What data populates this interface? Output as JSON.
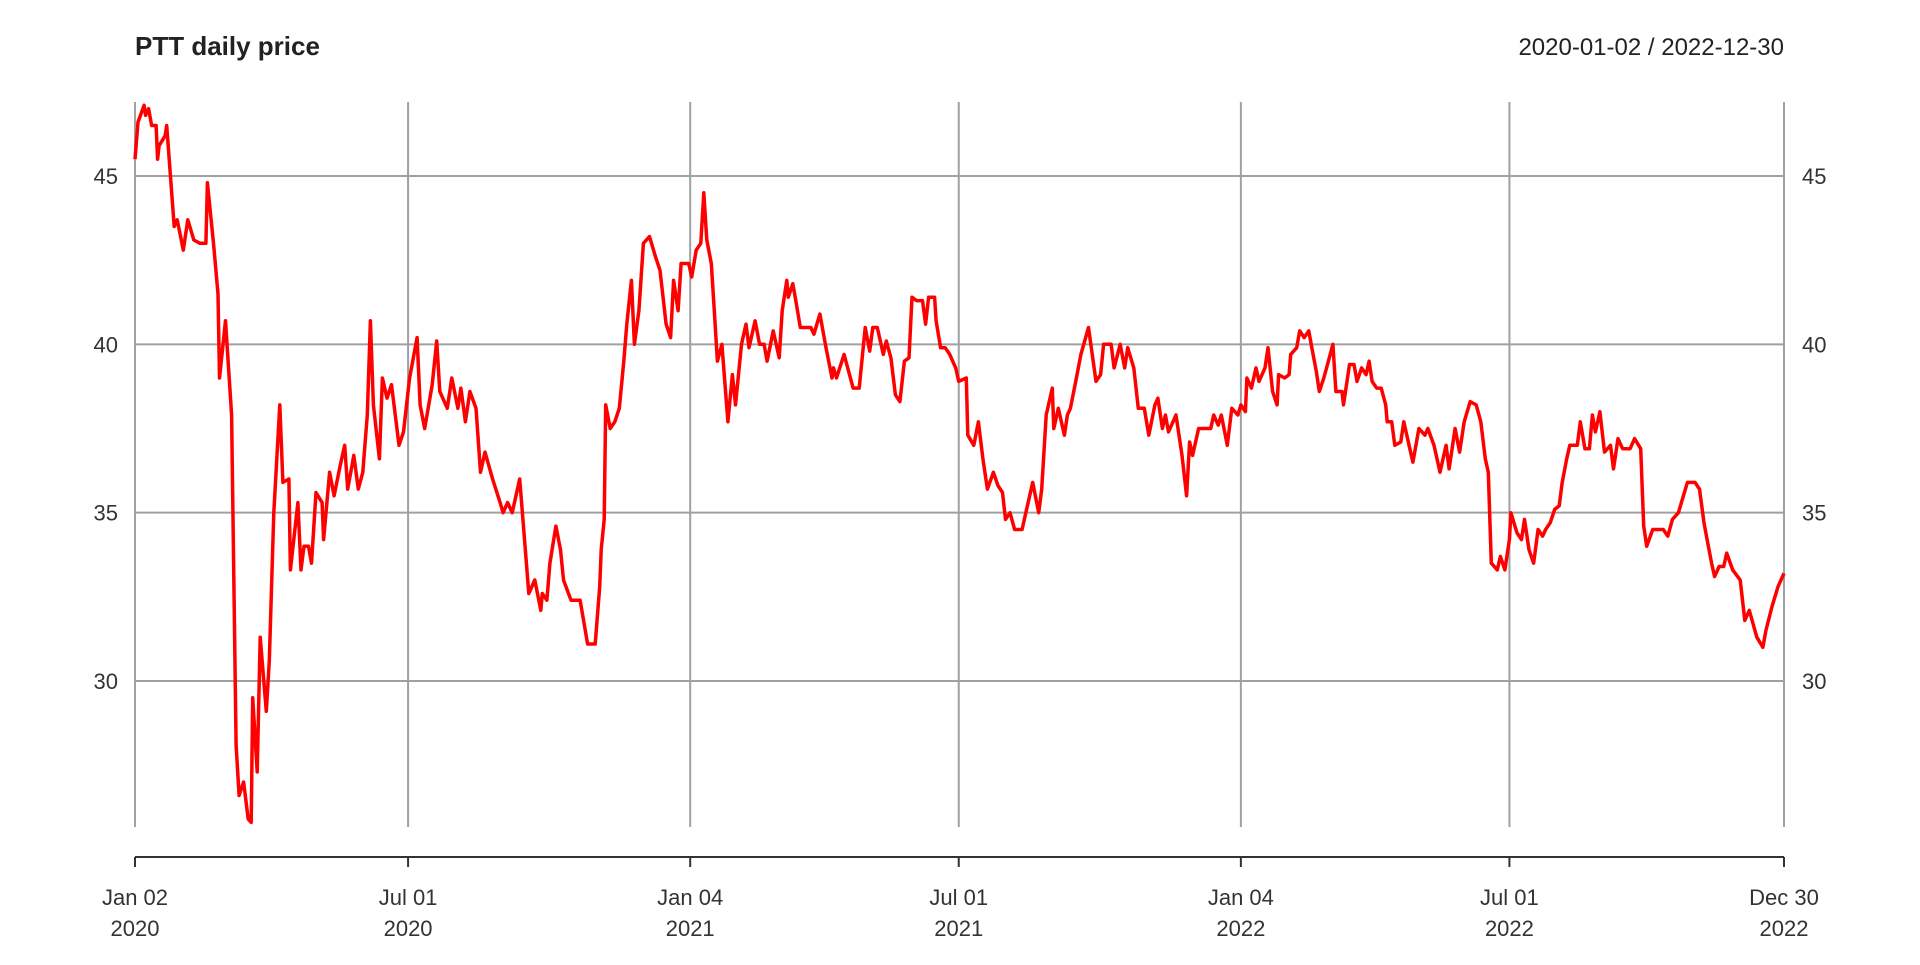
{
  "chart_data": {
    "type": "line",
    "title": "PTT daily price",
    "date_range": "2020-01-02 / 2022-12-30",
    "xlabel": "",
    "ylabel": "",
    "xlim": [
      "2020-01-02",
      "2022-12-30"
    ],
    "ylim": [
      25.8,
      47.2
    ],
    "grid": true,
    "y_ticks": [
      30,
      35,
      40,
      45
    ],
    "y_tick_labels": [
      "30",
      "35",
      "40",
      "45"
    ],
    "x_ticks": [
      {
        "date": "2020-01-02",
        "label1": "Jan 02",
        "label2": "2020"
      },
      {
        "date": "2020-07-01",
        "label1": "Jul 01",
        "label2": "2020"
      },
      {
        "date": "2021-01-04",
        "label1": "Jan 04",
        "label2": "2021"
      },
      {
        "date": "2021-07-01",
        "label1": "Jul 01",
        "label2": "2021"
      },
      {
        "date": "2022-01-04",
        "label1": "Jan 04",
        "label2": "2022"
      },
      {
        "date": "2022-07-01",
        "label1": "Jul 01",
        "label2": "2022"
      },
      {
        "date": "2022-12-30",
        "label1": "Dec 30",
        "label2": "2022"
      }
    ],
    "series_color": "#ff0000",
    "points": [
      [
        "2020-01-02",
        45.5
      ],
      [
        "2020-01-04",
        46.6
      ],
      [
        "2020-01-08",
        47.1
      ],
      [
        "2020-01-09",
        46.8
      ],
      [
        "2020-01-11",
        47.0
      ],
      [
        "2020-01-13",
        46.5
      ],
      [
        "2020-01-16",
        46.5
      ],
      [
        "2020-01-17",
        45.5
      ],
      [
        "2020-01-18",
        45.9
      ],
      [
        "2020-01-22",
        46.2
      ],
      [
        "2020-01-23",
        46.5
      ],
      [
        "2020-01-28",
        43.5
      ],
      [
        "2020-01-30",
        43.7
      ],
      [
        "2020-02-03",
        42.8
      ],
      [
        "2020-02-06",
        43.7
      ],
      [
        "2020-02-10",
        43.1
      ],
      [
        "2020-02-14",
        43.0
      ],
      [
        "2020-02-18",
        43.0
      ],
      [
        "2020-02-19",
        44.8
      ],
      [
        "2020-02-23",
        43.0
      ],
      [
        "2020-02-26",
        41.5
      ],
      [
        "2020-02-27",
        39.0
      ],
      [
        "2020-03-02",
        40.7
      ],
      [
        "2020-03-06",
        37.9
      ],
      [
        "2020-03-09",
        28.1
      ],
      [
        "2020-03-11",
        26.6
      ],
      [
        "2020-03-14",
        27.0
      ],
      [
        "2020-03-17",
        25.9
      ],
      [
        "2020-03-19",
        25.8
      ],
      [
        "2020-03-20",
        29.5
      ],
      [
        "2020-03-23",
        27.3
      ],
      [
        "2020-03-25",
        31.3
      ],
      [
        "2020-03-29",
        29.1
      ],
      [
        "2020-03-31",
        30.6
      ],
      [
        "2020-04-03",
        35.0
      ],
      [
        "2020-04-07",
        38.2
      ],
      [
        "2020-04-09",
        35.9
      ],
      [
        "2020-04-13",
        36.0
      ],
      [
        "2020-04-14",
        33.3
      ],
      [
        "2020-04-19",
        35.3
      ],
      [
        "2020-04-21",
        33.3
      ],
      [
        "2020-04-23",
        34.0
      ],
      [
        "2020-04-26",
        34.0
      ],
      [
        "2020-04-28",
        33.5
      ],
      [
        "2020-05-01",
        35.6
      ],
      [
        "2020-05-05",
        35.3
      ],
      [
        "2020-05-06",
        34.2
      ],
      [
        "2020-05-10",
        36.2
      ],
      [
        "2020-05-13",
        35.5
      ],
      [
        "2020-05-17",
        36.4
      ],
      [
        "2020-05-20",
        37.0
      ],
      [
        "2020-05-22",
        35.7
      ],
      [
        "2020-05-26",
        36.7
      ],
      [
        "2020-05-29",
        35.7
      ],
      [
        "2020-06-01",
        36.2
      ],
      [
        "2020-06-04",
        37.9
      ],
      [
        "2020-06-06",
        40.7
      ],
      [
        "2020-06-08",
        38.2
      ],
      [
        "2020-06-12",
        36.6
      ],
      [
        "2020-06-14",
        39.0
      ],
      [
        "2020-06-17",
        38.4
      ],
      [
        "2020-06-20",
        38.8
      ],
      [
        "2020-06-25",
        37.0
      ],
      [
        "2020-06-28",
        37.4
      ],
      [
        "2020-07-02",
        39.0
      ],
      [
        "2020-07-07",
        40.2
      ],
      [
        "2020-07-09",
        38.2
      ],
      [
        "2020-07-12",
        37.5
      ],
      [
        "2020-07-17",
        38.8
      ],
      [
        "2020-07-20",
        40.1
      ],
      [
        "2020-07-22",
        38.6
      ],
      [
        "2020-07-27",
        38.1
      ],
      [
        "2020-07-30",
        39.0
      ],
      [
        "2020-08-03",
        38.1
      ],
      [
        "2020-08-05",
        38.7
      ],
      [
        "2020-08-08",
        37.7
      ],
      [
        "2020-08-11",
        38.6
      ],
      [
        "2020-08-15",
        38.1
      ],
      [
        "2020-08-18",
        36.2
      ],
      [
        "2020-08-21",
        36.8
      ],
      [
        "2020-08-26",
        36.0
      ],
      [
        "2020-08-31",
        35.3
      ],
      [
        "2020-09-02",
        35.0
      ],
      [
        "2020-09-05",
        35.3
      ],
      [
        "2020-09-08",
        35.0
      ],
      [
        "2020-09-13",
        36.0
      ],
      [
        "2020-09-19",
        32.6
      ],
      [
        "2020-09-23",
        33.0
      ],
      [
        "2020-09-27",
        32.1
      ],
      [
        "2020-09-28",
        32.6
      ],
      [
        "2020-10-01",
        32.4
      ],
      [
        "2020-10-03",
        33.5
      ],
      [
        "2020-10-07",
        34.6
      ],
      [
        "2020-10-10",
        33.9
      ],
      [
        "2020-10-12",
        33.0
      ],
      [
        "2020-10-17",
        32.4
      ],
      [
        "2020-10-23",
        32.4
      ],
      [
        "2020-10-28",
        31.1
      ],
      [
        "2020-11-02",
        31.1
      ],
      [
        "2020-11-05",
        32.8
      ],
      [
        "2020-11-06",
        33.9
      ],
      [
        "2020-11-08",
        34.8
      ],
      [
        "2020-11-09",
        38.2
      ],
      [
        "2020-11-12",
        37.5
      ],
      [
        "2020-11-15",
        37.7
      ],
      [
        "2020-11-18",
        38.1
      ],
      [
        "2020-11-21",
        39.5
      ],
      [
        "2020-11-23",
        40.6
      ],
      [
        "2020-11-26",
        41.9
      ],
      [
        "2020-11-28",
        40.0
      ],
      [
        "2020-12-01",
        41.0
      ],
      [
        "2020-12-04",
        43.0
      ],
      [
        "2020-12-08",
        43.2
      ],
      [
        "2020-12-12",
        42.6
      ],
      [
        "2020-12-15",
        42.2
      ],
      [
        "2020-12-19",
        40.6
      ],
      [
        "2020-12-22",
        40.2
      ],
      [
        "2020-12-24",
        41.9
      ],
      [
        "2020-12-27",
        41.0
      ],
      [
        "2020-12-29",
        42.4
      ],
      [
        "2021-01-03",
        42.4
      ],
      [
        "2021-01-05",
        42.0
      ],
      [
        "2021-01-08",
        42.8
      ],
      [
        "2021-01-11",
        43.0
      ],
      [
        "2021-01-13",
        44.5
      ],
      [
        "2021-01-15",
        43.1
      ],
      [
        "2021-01-18",
        42.4
      ],
      [
        "2021-01-20",
        41.0
      ],
      [
        "2021-01-22",
        39.5
      ],
      [
        "2021-01-25",
        40.0
      ],
      [
        "2021-01-29",
        37.7
      ],
      [
        "2021-02-01",
        39.1
      ],
      [
        "2021-02-03",
        38.2
      ],
      [
        "2021-02-07",
        40.0
      ],
      [
        "2021-02-10",
        40.6
      ],
      [
        "2021-02-12",
        39.9
      ],
      [
        "2021-02-16",
        40.7
      ],
      [
        "2021-02-19",
        40.0
      ],
      [
        "2021-02-22",
        40.0
      ],
      [
        "2021-02-24",
        39.5
      ],
      [
        "2021-02-28",
        40.4
      ],
      [
        "2021-03-04",
        39.6
      ],
      [
        "2021-03-06",
        41.0
      ],
      [
        "2021-03-09",
        41.9
      ],
      [
        "2021-03-10",
        41.4
      ],
      [
        "2021-03-13",
        41.8
      ],
      [
        "2021-03-15",
        41.3
      ],
      [
        "2021-03-18",
        40.5
      ],
      [
        "2021-03-25",
        40.5
      ],
      [
        "2021-03-27",
        40.3
      ],
      [
        "2021-03-31",
        40.9
      ],
      [
        "2021-04-04",
        39.9
      ],
      [
        "2021-04-08",
        39.0
      ],
      [
        "2021-04-09",
        39.3
      ],
      [
        "2021-04-11",
        39.0
      ],
      [
        "2021-04-16",
        39.7
      ],
      [
        "2021-04-22",
        38.7
      ],
      [
        "2021-04-26",
        38.7
      ],
      [
        "2021-04-30",
        40.5
      ],
      [
        "2021-05-03",
        39.8
      ],
      [
        "2021-05-05",
        40.5
      ],
      [
        "2021-05-08",
        40.5
      ],
      [
        "2021-05-12",
        39.7
      ],
      [
        "2021-05-14",
        40.1
      ],
      [
        "2021-05-17",
        39.6
      ],
      [
        "2021-05-20",
        38.5
      ],
      [
        "2021-05-23",
        38.3
      ],
      [
        "2021-05-26",
        39.5
      ],
      [
        "2021-05-29",
        39.6
      ],
      [
        "2021-05-31",
        41.4
      ],
      [
        "2021-06-03",
        41.3
      ],
      [
        "2021-06-07",
        41.3
      ],
      [
        "2021-06-09",
        40.6
      ],
      [
        "2021-06-11",
        41.4
      ],
      [
        "2021-06-15",
        41.4
      ],
      [
        "2021-06-16",
        40.7
      ],
      [
        "2021-06-19",
        39.9
      ],
      [
        "2021-06-22",
        39.9
      ],
      [
        "2021-06-25",
        39.7
      ],
      [
        "2021-06-29",
        39.3
      ],
      [
        "2021-07-01",
        38.9
      ],
      [
        "2021-07-06",
        39.0
      ],
      [
        "2021-07-07",
        37.3
      ],
      [
        "2021-07-11",
        37.0
      ],
      [
        "2021-07-14",
        37.7
      ],
      [
        "2021-07-17",
        36.6
      ],
      [
        "2021-07-20",
        35.7
      ],
      [
        "2021-07-24",
        36.2
      ],
      [
        "2021-07-27",
        35.8
      ],
      [
        "2021-07-30",
        35.6
      ],
      [
        "2021-08-01",
        34.8
      ],
      [
        "2021-08-04",
        35.0
      ],
      [
        "2021-08-07",
        34.5
      ],
      [
        "2021-08-12",
        34.5
      ],
      [
        "2021-08-15",
        35.1
      ],
      [
        "2021-08-19",
        35.9
      ],
      [
        "2021-08-23",
        35.0
      ],
      [
        "2021-08-25",
        35.7
      ],
      [
        "2021-08-28",
        37.9
      ],
      [
        "2021-09-01",
        38.7
      ],
      [
        "2021-09-02",
        37.5
      ],
      [
        "2021-09-05",
        38.1
      ],
      [
        "2021-09-09",
        37.3
      ],
      [
        "2021-09-11",
        37.9
      ],
      [
        "2021-09-13",
        38.1
      ],
      [
        "2021-09-17",
        39.0
      ],
      [
        "2021-09-20",
        39.7
      ],
      [
        "2021-09-25",
        40.5
      ],
      [
        "2021-09-30",
        38.9
      ],
      [
        "2021-10-03",
        39.1
      ],
      [
        "2021-10-05",
        40.0
      ],
      [
        "2021-10-10",
        40.0
      ],
      [
        "2021-10-12",
        39.3
      ],
      [
        "2021-10-16",
        40.0
      ],
      [
        "2021-10-19",
        39.3
      ],
      [
        "2021-10-21",
        39.9
      ],
      [
        "2021-10-25",
        39.3
      ],
      [
        "2021-10-28",
        38.1
      ],
      [
        "2021-11-01",
        38.1
      ],
      [
        "2021-11-04",
        37.3
      ],
      [
        "2021-11-08",
        38.2
      ],
      [
        "2021-11-10",
        38.4
      ],
      [
        "2021-11-13",
        37.5
      ],
      [
        "2021-11-15",
        37.9
      ],
      [
        "2021-11-17",
        37.4
      ],
      [
        "2021-11-22",
        37.9
      ],
      [
        "2021-11-26",
        36.7
      ],
      [
        "2021-11-29",
        35.5
      ],
      [
        "2021-12-01",
        37.1
      ],
      [
        "2021-12-03",
        36.7
      ],
      [
        "2021-12-07",
        37.5
      ],
      [
        "2021-12-15",
        37.5
      ],
      [
        "2021-12-17",
        37.9
      ],
      [
        "2021-12-20",
        37.6
      ],
      [
        "2021-12-22",
        37.9
      ],
      [
        "2021-12-26",
        37.0
      ],
      [
        "2021-12-29",
        38.1
      ],
      [
        "2022-01-02",
        37.9
      ],
      [
        "2022-01-04",
        38.2
      ],
      [
        "2022-01-07",
        38.0
      ],
      [
        "2022-01-08",
        39.0
      ],
      [
        "2022-01-11",
        38.7
      ],
      [
        "2022-01-14",
        39.3
      ],
      [
        "2022-01-16",
        38.9
      ],
      [
        "2022-01-20",
        39.3
      ],
      [
        "2022-01-22",
        39.9
      ],
      [
        "2022-01-25",
        38.6
      ],
      [
        "2022-01-28",
        38.2
      ],
      [
        "2022-01-29",
        39.1
      ],
      [
        "2022-02-02",
        39.0
      ],
      [
        "2022-02-05",
        39.1
      ],
      [
        "2022-02-06",
        39.7
      ],
      [
        "2022-02-10",
        39.9
      ],
      [
        "2022-02-12",
        40.4
      ],
      [
        "2022-02-15",
        40.2
      ],
      [
        "2022-02-18",
        40.4
      ],
      [
        "2022-02-20",
        39.9
      ],
      [
        "2022-02-23",
        39.2
      ],
      [
        "2022-02-25",
        38.6
      ],
      [
        "2022-02-28",
        39.0
      ],
      [
        "2022-03-03",
        39.5
      ],
      [
        "2022-03-06",
        40.0
      ],
      [
        "2022-03-08",
        38.6
      ],
      [
        "2022-03-12",
        38.6
      ],
      [
        "2022-03-13",
        38.2
      ],
      [
        "2022-03-17",
        39.4
      ],
      [
        "2022-03-20",
        39.4
      ],
      [
        "2022-03-22",
        38.9
      ],
      [
        "2022-03-25",
        39.3
      ],
      [
        "2022-03-28",
        39.1
      ],
      [
        "2022-03-30",
        39.5
      ],
      [
        "2022-04-01",
        38.9
      ],
      [
        "2022-04-04",
        38.7
      ],
      [
        "2022-04-07",
        38.7
      ],
      [
        "2022-04-10",
        38.2
      ],
      [
        "2022-04-11",
        37.7
      ],
      [
        "2022-04-14",
        37.7
      ],
      [
        "2022-04-16",
        37.0
      ],
      [
        "2022-04-20",
        37.1
      ],
      [
        "2022-04-22",
        37.7
      ],
      [
        "2022-04-24",
        37.3
      ],
      [
        "2022-04-28",
        36.5
      ],
      [
        "2022-05-02",
        37.5
      ],
      [
        "2022-05-06",
        37.3
      ],
      [
        "2022-05-08",
        37.5
      ],
      [
        "2022-05-12",
        37.0
      ],
      [
        "2022-05-16",
        36.2
      ],
      [
        "2022-05-20",
        37.0
      ],
      [
        "2022-05-22",
        36.3
      ],
      [
        "2022-05-26",
        37.5
      ],
      [
        "2022-05-29",
        36.8
      ],
      [
        "2022-06-01",
        37.7
      ],
      [
        "2022-06-05",
        38.3
      ],
      [
        "2022-06-09",
        38.2
      ],
      [
        "2022-06-12",
        37.7
      ],
      [
        "2022-06-15",
        36.6
      ],
      [
        "2022-06-17",
        36.2
      ],
      [
        "2022-06-19",
        33.5
      ],
      [
        "2022-06-23",
        33.3
      ],
      [
        "2022-06-25",
        33.7
      ],
      [
        "2022-06-28",
        33.3
      ],
      [
        "2022-07-01",
        34.2
      ],
      [
        "2022-07-02",
        35.0
      ],
      [
        "2022-07-06",
        34.4
      ],
      [
        "2022-07-09",
        34.2
      ],
      [
        "2022-07-11",
        34.8
      ],
      [
        "2022-07-14",
        33.9
      ],
      [
        "2022-07-17",
        33.5
      ],
      [
        "2022-07-20",
        34.5
      ],
      [
        "2022-07-23",
        34.3
      ],
      [
        "2022-07-25",
        34.5
      ],
      [
        "2022-07-28",
        34.7
      ],
      [
        "2022-07-31",
        35.1
      ],
      [
        "2022-08-03",
        35.2
      ],
      [
        "2022-08-05",
        35.9
      ],
      [
        "2022-08-08",
        36.6
      ],
      [
        "2022-08-10",
        37.0
      ],
      [
        "2022-08-15",
        37.0
      ],
      [
        "2022-08-17",
        37.7
      ],
      [
        "2022-08-20",
        36.9
      ],
      [
        "2022-08-23",
        36.9
      ],
      [
        "2022-08-25",
        37.9
      ],
      [
        "2022-08-27",
        37.4
      ],
      [
        "2022-08-30",
        38.0
      ],
      [
        "2022-09-02",
        36.8
      ],
      [
        "2022-09-06",
        37.0
      ],
      [
        "2022-09-08",
        36.3
      ],
      [
        "2022-09-11",
        37.2
      ],
      [
        "2022-09-14",
        36.9
      ],
      [
        "2022-09-19",
        36.9
      ],
      [
        "2022-09-22",
        37.2
      ],
      [
        "2022-09-26",
        36.9
      ],
      [
        "2022-09-28",
        34.6
      ],
      [
        "2022-09-30",
        34.0
      ],
      [
        "2022-10-04",
        34.5
      ],
      [
        "2022-10-11",
        34.5
      ],
      [
        "2022-10-14",
        34.3
      ],
      [
        "2022-10-17",
        34.8
      ],
      [
        "2022-10-21",
        35.0
      ],
      [
        "2022-10-27",
        35.9
      ],
      [
        "2022-11-01",
        35.9
      ],
      [
        "2022-11-04",
        35.7
      ],
      [
        "2022-11-07",
        34.7
      ],
      [
        "2022-11-09",
        34.2
      ],
      [
        "2022-11-12",
        33.5
      ],
      [
        "2022-11-14",
        33.1
      ],
      [
        "2022-11-17",
        33.4
      ],
      [
        "2022-11-20",
        33.4
      ],
      [
        "2022-11-22",
        33.8
      ],
      [
        "2022-11-26",
        33.3
      ],
      [
        "2022-12-01",
        33.0
      ],
      [
        "2022-12-04",
        31.8
      ],
      [
        "2022-12-07",
        32.1
      ],
      [
        "2022-12-12",
        31.3
      ],
      [
        "2022-12-16",
        31.0
      ],
      [
        "2022-12-18",
        31.5
      ],
      [
        "2022-12-22",
        32.2
      ],
      [
        "2022-12-26",
        32.8
      ],
      [
        "2022-12-30",
        33.2
      ]
    ]
  }
}
